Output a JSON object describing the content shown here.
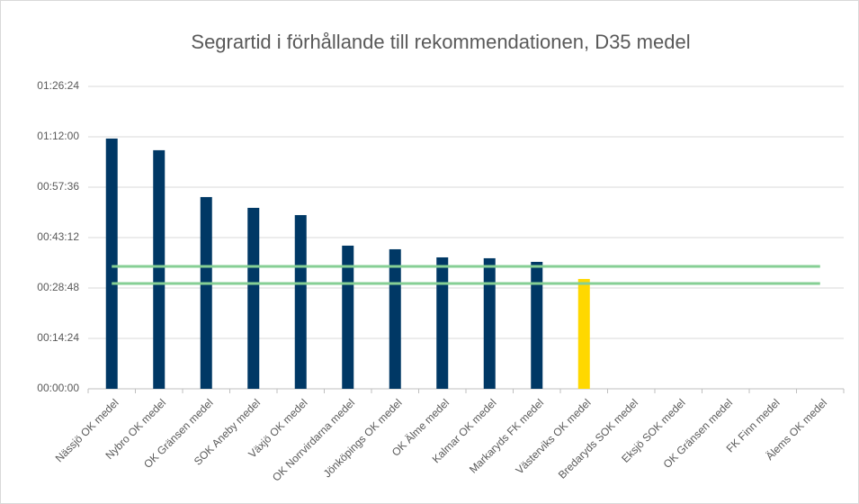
{
  "chart_data": {
    "type": "bar",
    "title": "Segrartid i förhållande till rekommendationen, D35 medel",
    "categories": [
      "Nässjö OK medel",
      "Nybro OK medel",
      "OK Gränsen medel",
      "SOK Aneby medel",
      "Växjö OK medel",
      "OK Norrvirdarna medel",
      "Jönköpings OK medel",
      "OK Älme medel",
      "Kalmar OK medel",
      "Markaryds FK medel",
      "Västerviks OK medel",
      "Bredaryds SOK medel",
      "Eksjö SOK medel",
      "OK Gränsen medel",
      "FK Finn medel",
      "Älems OK medel"
    ],
    "values": [
      4290,
      4090,
      3287,
      3102,
      2978,
      2454,
      2392,
      2253,
      2238,
      2176,
      1883,
      null,
      null,
      null,
      null,
      null
    ],
    "colors": [
      "#003865",
      "#003865",
      "#003865",
      "#003865",
      "#003865",
      "#003865",
      "#003865",
      "#003865",
      "#003865",
      "#003865",
      "#ffd800",
      "#003865",
      "#003865",
      "#003865",
      "#003865",
      "#003865"
    ],
    "reference_lines": [
      {
        "value": 2099,
        "color": "#86cf94"
      },
      {
        "value": 1806,
        "color": "#86cf94"
      }
    ],
    "ylim": [
      0,
      5184
    ],
    "yticks": [
      {
        "value": 0,
        "label": "00:00:00"
      },
      {
        "value": 864,
        "label": "00:14:24"
      },
      {
        "value": 1728,
        "label": "00:28:48"
      },
      {
        "value": 2592,
        "label": "00:43:12"
      },
      {
        "value": 3456,
        "label": "00:57:36"
      },
      {
        "value": 4320,
        "label": "01:12:00"
      },
      {
        "value": 5184,
        "label": "01:26:24"
      }
    ],
    "grid": true
  }
}
